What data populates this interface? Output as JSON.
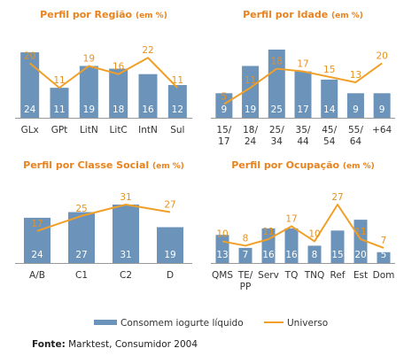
{
  "legend": {
    "bar_label": "Consomem iogurte líquido",
    "line_label": "Universo"
  },
  "source": {
    "label": "Fonte:",
    "text": " Marktest, Consumidor 2004"
  },
  "colors": {
    "bar": "#6c93b9",
    "line": "#f0a028",
    "title": "#e8821e"
  },
  "chart_data": [
    {
      "type": "bar",
      "title": "Perfil por Região",
      "title_unit": "(em %)",
      "categories": [
        "GLx",
        "GPt",
        "LitN",
        "LitC",
        "IntN",
        "Sul"
      ],
      "series": [
        {
          "name": "Consomem iogurte líquido",
          "type": "bar",
          "values": [
            24,
            11,
            19,
            18,
            16,
            12
          ]
        },
        {
          "name": "Universo",
          "type": "line",
          "values": [
            20,
            11,
            19,
            16,
            22,
            11
          ]
        }
      ],
      "ylim": [
        0,
        25
      ]
    },
    {
      "type": "bar",
      "title": "Perfil por Idade",
      "title_unit": "(em %)",
      "categories": [
        "15/\n17",
        "18/\n24",
        "25/\n34",
        "35/\n44",
        "45/\n54",
        "55/\n64",
        "+64"
      ],
      "series": [
        {
          "name": "Consomem iogurte líquido",
          "type": "bar",
          "values": [
            9,
            19,
            25,
            17,
            14,
            9,
            9
          ]
        },
        {
          "name": "Universo",
          "type": "line",
          "values": [
            5,
            11,
            18,
            17,
            15,
            13,
            20
          ]
        }
      ],
      "ylim": [
        0,
        25
      ]
    },
    {
      "type": "bar",
      "title": "Perfil por Classe Social",
      "title_unit": "(em %)",
      "categories": [
        "A/B",
        "C1",
        "C2",
        "D"
      ],
      "series": [
        {
          "name": "Consomem iogurte líquido",
          "type": "bar",
          "values": [
            24,
            27,
            31,
            19
          ]
        },
        {
          "name": "Universo",
          "type": "line",
          "values": [
            17,
            25,
            31,
            27
          ]
        }
      ],
      "ylim": [
        0,
        31
      ]
    },
    {
      "type": "bar",
      "title": "Perfil por Ocupação",
      "title_unit": "(em %)",
      "categories": [
        "QMS",
        "TE/\nPP",
        "Serv",
        "TQ",
        "TNQ",
        "Ref",
        "Est",
        "Dom"
      ],
      "series": [
        {
          "name": "Consomem iogurte líquido",
          "type": "bar",
          "values": [
            13,
            7,
            16,
            16,
            8,
            15,
            20,
            5
          ]
        },
        {
          "name": "Universo",
          "type": "line",
          "values": [
            10,
            8,
            11,
            17,
            10,
            27,
            11,
            7
          ]
        }
      ],
      "ylim": [
        0,
        27
      ]
    }
  ]
}
